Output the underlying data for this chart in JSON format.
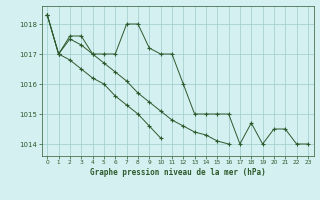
{
  "title": "Graphe pression niveau de la mer (hPa)",
  "background_color": "#d4f0f0",
  "grid_color": "#a0cccc",
  "line_color": "#2d5a2d",
  "xlim": [
    -0.5,
    23.5
  ],
  "ylim": [
    1013.6,
    1018.6
  ],
  "yticks": [
    1014,
    1015,
    1016,
    1017,
    1018
  ],
  "xticks": [
    0,
    1,
    2,
    3,
    4,
    5,
    6,
    7,
    8,
    9,
    10,
    11,
    12,
    13,
    14,
    15,
    16,
    17,
    18,
    19,
    20,
    21,
    22,
    23
  ],
  "series": [
    {
      "x": [
        0,
        1,
        2,
        3,
        4,
        5,
        6,
        7,
        8,
        9,
        10,
        11,
        12,
        13,
        14,
        15,
        16,
        17,
        18,
        19,
        20,
        21,
        22,
        23
      ],
      "y": [
        1018.3,
        1017.0,
        1017.6,
        1017.6,
        1017.0,
        1017.0,
        1017.0,
        1018.0,
        1018.0,
        1017.2,
        1017.0,
        1017.0,
        1016.0,
        1015.0,
        1015.0,
        1015.0,
        1015.0,
        1014.0,
        1014.7,
        1014.0,
        1014.5,
        1014.5,
        1014.0,
        1014.0
      ]
    },
    {
      "x": [
        0,
        1,
        2,
        3,
        4,
        5,
        6,
        7,
        8,
        9,
        10,
        11,
        12,
        13,
        14,
        15,
        16
      ],
      "y": [
        1018.3,
        1017.0,
        1017.5,
        1017.3,
        1017.0,
        1016.7,
        1016.4,
        1016.1,
        1015.7,
        1015.4,
        1015.1,
        1014.8,
        1014.6,
        1014.4,
        1014.3,
        1014.1,
        1014.0
      ]
    },
    {
      "x": [
        0,
        1,
        2,
        3,
        4,
        5,
        6,
        7,
        8,
        9,
        10
      ],
      "y": [
        1018.3,
        1017.0,
        1016.8,
        1016.5,
        1016.2,
        1016.0,
        1015.6,
        1015.3,
        1015.0,
        1014.6,
        1014.2
      ]
    }
  ]
}
